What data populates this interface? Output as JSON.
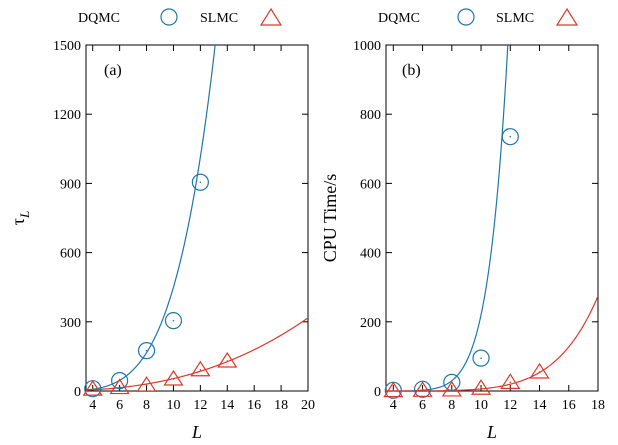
{
  "chart_data": [
    {
      "type": "scatter",
      "panel_label": "(a)",
      "xlabel": "L",
      "ylabel": "τ_L",
      "xlim": [
        3.5,
        20
      ],
      "ylim": [
        0,
        1500
      ],
      "xticks": [
        4,
        6,
        8,
        10,
        12,
        14,
        16,
        18,
        20
      ],
      "yticks": [
        0,
        300,
        600,
        900,
        1200,
        1500
      ],
      "legend": {
        "placement": "top",
        "entries": [
          "DQMC",
          "SLMC"
        ]
      },
      "grid": false,
      "series": [
        {
          "name": "DQMC",
          "marker": "circle",
          "color": "#1f77a8",
          "x": [
            4,
            6,
            8,
            10,
            12
          ],
          "y": [
            10,
            45,
            175,
            305,
            905
          ],
          "fit": {
            "kind": "power",
            "a": 0.0156,
            "b": 4.46
          }
        },
        {
          "name": "SLMC",
          "marker": "triangle",
          "color": "#d93a2b",
          "x": [
            4,
            6,
            8,
            10,
            12,
            14
          ],
          "y": [
            8,
            15,
            25,
            52,
            92,
            130
          ],
          "fit": {
            "kind": "power",
            "a": 0.148,
            "b": 2.56
          }
        }
      ]
    },
    {
      "type": "scatter",
      "panel_label": "(b)",
      "xlabel": "L",
      "ylabel": "CPU Time/s",
      "xlim": [
        3.5,
        18
      ],
      "ylim": [
        0,
        1000
      ],
      "xticks": [
        4,
        6,
        8,
        10,
        12,
        14,
        16,
        18
      ],
      "yticks": [
        0,
        200,
        400,
        600,
        800,
        1000
      ],
      "legend": {
        "placement": "top",
        "entries": [
          "DQMC",
          "SLMC"
        ]
      },
      "grid": false,
      "series": [
        {
          "name": "DQMC",
          "marker": "circle",
          "color": "#1f77a8",
          "x": [
            4,
            6,
            8,
            10,
            12
          ],
          "y": [
            2,
            5,
            25,
            95,
            735
          ],
          "fit": {
            "kind": "power",
            "a": 2.2e-07,
            "b": 9.0
          }
        },
        {
          "name": "SLMC",
          "marker": "triangle",
          "color": "#d93a2b",
          "x": [
            4,
            6,
            8,
            10,
            12,
            14
          ],
          "y": [
            1,
            2,
            3,
            8,
            25,
            55
          ],
          "fit": {
            "kind": "power",
            "a": 1.9e-06,
            "b": 6.5
          }
        }
      ]
    }
  ],
  "colors": {
    "dqmc": "#1f77a8",
    "slmc": "#d93a2b",
    "axis": "#000000"
  }
}
